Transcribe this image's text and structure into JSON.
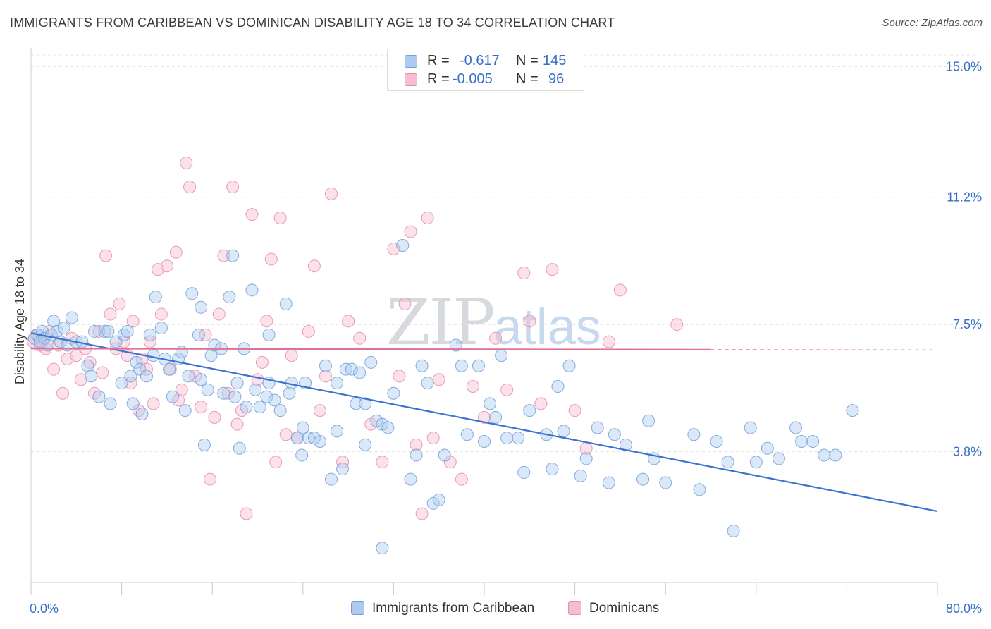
{
  "title": "IMMIGRANTS FROM CARIBBEAN VS DOMINICAN DISABILITY AGE 18 TO 34 CORRELATION CHART",
  "source": "Source: ZipAtlas.com",
  "watermark": {
    "zip": "ZIP",
    "atlas": "atlas"
  },
  "legend_top": [
    {
      "r_label": "R =",
      "r_value": "-0.617",
      "n_label": "N =",
      "n_value": "145"
    },
    {
      "r_label": "R =",
      "r_value": "-0.005",
      "n_label": "N =",
      "n_value": "96"
    }
  ],
  "legend_bottom": [
    {
      "label": "Immigrants from Caribbean"
    },
    {
      "label": "Dominicans"
    }
  ],
  "colors": {
    "blue_fill": "#aecbef",
    "blue_stroke": "#6f9fd8",
    "blue_line": "#3a73d0",
    "pink_fill": "#f7bdd0",
    "pink_stroke": "#e98aab",
    "pink_line": "#e07095",
    "tick_text": "#3a6fc7",
    "grid": "#e2e2e2"
  },
  "chart_data": {
    "type": "scatter",
    "title": "IMMIGRANTS FROM CARIBBEAN VS DOMINICAN DISABILITY AGE 18 TO 34 CORRELATION CHART",
    "xlabel": "",
    "ylabel": "Disability Age 18 to 34",
    "xlim": [
      0,
      80
    ],
    "ylim": [
      0,
      15.5
    ],
    "x_tick_labels": [
      "0.0%",
      "80.0%"
    ],
    "y_ticks": [
      3.8,
      7.5,
      11.2,
      15.0
    ],
    "y_tick_labels": [
      "3.8%",
      "7.5%",
      "11.2%",
      "15.0%"
    ],
    "grid": "horizontal dashed",
    "legend": "top-center",
    "series": [
      {
        "name": "Immigrants from Caribbean",
        "R": -0.617,
        "N": 145,
        "trend": {
          "x": [
            0,
            80
          ],
          "y": [
            7.25,
            2.07
          ]
        },
        "points": [
          [
            0.3,
            7.1
          ],
          [
            0.6,
            7.2
          ],
          [
            0.8,
            7.0
          ],
          [
            1.0,
            7.3
          ],
          [
            1.2,
            7.1
          ],
          [
            1.5,
            6.9
          ],
          [
            1.8,
            7.2
          ],
          [
            2.0,
            7.6
          ],
          [
            2.3,
            7.3
          ],
          [
            2.6,
            7.0
          ],
          [
            2.9,
            7.4
          ],
          [
            3.2,
            6.9
          ],
          [
            3.6,
            7.7
          ],
          [
            4.0,
            7.0
          ],
          [
            4.5,
            7.0
          ],
          [
            5.0,
            6.3
          ],
          [
            5.3,
            6.0
          ],
          [
            5.6,
            7.3
          ],
          [
            6.0,
            5.4
          ],
          [
            6.5,
            7.3
          ],
          [
            6.8,
            7.3
          ],
          [
            7.0,
            5.2
          ],
          [
            7.5,
            7.0
          ],
          [
            8.0,
            5.8
          ],
          [
            8.2,
            7.2
          ],
          [
            8.5,
            7.3
          ],
          [
            8.8,
            6.0
          ],
          [
            9.0,
            5.2
          ],
          [
            9.3,
            6.4
          ],
          [
            9.6,
            6.2
          ],
          [
            9.8,
            4.9
          ],
          [
            10.2,
            6.0
          ],
          [
            10.5,
            7.2
          ],
          [
            10.8,
            6.6
          ],
          [
            11.0,
            8.3
          ],
          [
            11.5,
            7.4
          ],
          [
            11.8,
            6.5
          ],
          [
            12.2,
            6.2
          ],
          [
            12.5,
            5.4
          ],
          [
            13.0,
            6.5
          ],
          [
            13.3,
            6.7
          ],
          [
            13.6,
            5.0
          ],
          [
            13.9,
            6.0
          ],
          [
            14.2,
            8.4
          ],
          [
            14.8,
            7.2
          ],
          [
            15.0,
            8.0
          ],
          [
            15.3,
            4.0
          ],
          [
            15.6,
            5.6
          ],
          [
            15.9,
            6.6
          ],
          [
            16.2,
            6.9
          ],
          [
            16.8,
            6.8
          ],
          [
            17.0,
            5.5
          ],
          [
            17.5,
            8.3
          ],
          [
            17.8,
            9.5
          ],
          [
            18.2,
            5.8
          ],
          [
            18.4,
            3.9
          ],
          [
            18.8,
            6.8
          ],
          [
            19.0,
            5.1
          ],
          [
            19.5,
            8.5
          ],
          [
            19.8,
            5.6
          ],
          [
            20.2,
            5.1
          ],
          [
            20.8,
            5.4
          ],
          [
            21.0,
            7.2
          ],
          [
            21.5,
            5.3
          ],
          [
            22.0,
            5.0
          ],
          [
            22.5,
            8.1
          ],
          [
            22.8,
            5.5
          ],
          [
            23.0,
            5.8
          ],
          [
            23.5,
            4.2
          ],
          [
            23.9,
            3.7
          ],
          [
            24.2,
            5.8
          ],
          [
            24.5,
            4.2
          ],
          [
            25.0,
            4.2
          ],
          [
            25.5,
            4.1
          ],
          [
            26.0,
            6.3
          ],
          [
            26.5,
            3.0
          ],
          [
            27.0,
            4.4
          ],
          [
            27.5,
            3.3
          ],
          [
            27.8,
            6.2
          ],
          [
            28.3,
            6.2
          ],
          [
            28.7,
            5.2
          ],
          [
            29.0,
            6.1
          ],
          [
            29.5,
            4.0
          ],
          [
            30.0,
            6.4
          ],
          [
            30.5,
            4.7
          ],
          [
            31.0,
            4.6
          ],
          [
            31.5,
            4.5
          ],
          [
            32.0,
            5.5
          ],
          [
            32.8,
            9.8
          ],
          [
            33.5,
            3.0
          ],
          [
            34.0,
            3.7
          ],
          [
            34.5,
            6.3
          ],
          [
            35.0,
            5.8
          ],
          [
            35.5,
            2.3
          ],
          [
            36.0,
            2.4
          ],
          [
            36.5,
            3.7
          ],
          [
            37.5,
            6.9
          ],
          [
            38.0,
            6.3
          ],
          [
            38.5,
            4.3
          ],
          [
            39.5,
            6.3
          ],
          [
            40.0,
            4.1
          ],
          [
            40.5,
            5.2
          ],
          [
            41.0,
            4.8
          ],
          [
            41.5,
            6.6
          ],
          [
            42.0,
            4.2
          ],
          [
            43.0,
            4.2
          ],
          [
            43.5,
            3.2
          ],
          [
            44.0,
            5.0
          ],
          [
            45.5,
            4.3
          ],
          [
            46.0,
            3.3
          ],
          [
            46.5,
            5.7
          ],
          [
            47.0,
            4.4
          ],
          [
            47.5,
            6.3
          ],
          [
            48.5,
            3.1
          ],
          [
            49.0,
            3.6
          ],
          [
            50.0,
            4.5
          ],
          [
            51.0,
            2.9
          ],
          [
            51.5,
            4.3
          ],
          [
            52.5,
            4.0
          ],
          [
            54.0,
            3.0
          ],
          [
            54.5,
            4.7
          ],
          [
            55.0,
            3.6
          ],
          [
            56.0,
            2.9
          ],
          [
            58.5,
            4.3
          ],
          [
            59.0,
            2.7
          ],
          [
            60.5,
            4.1
          ],
          [
            61.5,
            3.5
          ],
          [
            62.0,
            1.5
          ],
          [
            63.5,
            4.5
          ],
          [
            64.0,
            3.5
          ],
          [
            65.0,
            3.9
          ],
          [
            66.0,
            3.6
          ],
          [
            67.5,
            4.5
          ],
          [
            68.0,
            4.1
          ],
          [
            69.0,
            4.1
          ],
          [
            70.0,
            3.7
          ],
          [
            71.0,
            3.7
          ],
          [
            72.5,
            5.0
          ],
          [
            31.0,
            1.0
          ],
          [
            29.5,
            5.2
          ],
          [
            27.0,
            5.8
          ],
          [
            24.0,
            4.5
          ],
          [
            21.0,
            5.8
          ],
          [
            18.0,
            5.4
          ],
          [
            15.0,
            5.9
          ]
        ]
      },
      {
        "name": "Dominicans",
        "R": -0.005,
        "N": 96,
        "trend": {
          "x": [
            0,
            60
          ],
          "y": [
            6.8,
            6.77
          ]
        },
        "trend_dashed": {
          "x": [
            60,
            80
          ],
          "y": [
            6.77,
            6.76
          ]
        },
        "points": [
          [
            0.2,
            7.0
          ],
          [
            0.5,
            7.2
          ],
          [
            0.8,
            6.9
          ],
          [
            1.0,
            7.0
          ],
          [
            1.3,
            6.8
          ],
          [
            1.6,
            7.3
          ],
          [
            2.0,
            6.2
          ],
          [
            2.4,
            6.9
          ],
          [
            2.8,
            5.5
          ],
          [
            3.2,
            6.5
          ],
          [
            3.6,
            7.1
          ],
          [
            4.0,
            6.6
          ],
          [
            4.4,
            5.9
          ],
          [
            4.8,
            6.8
          ],
          [
            5.2,
            6.4
          ],
          [
            5.6,
            5.5
          ],
          [
            6.0,
            7.3
          ],
          [
            6.3,
            6.1
          ],
          [
            6.6,
            9.5
          ],
          [
            7.0,
            7.8
          ],
          [
            7.5,
            6.8
          ],
          [
            7.8,
            8.1
          ],
          [
            8.2,
            7.0
          ],
          [
            8.5,
            6.6
          ],
          [
            8.8,
            5.8
          ],
          [
            9.0,
            7.6
          ],
          [
            9.5,
            5.0
          ],
          [
            9.8,
            6.5
          ],
          [
            10.2,
            6.2
          ],
          [
            10.5,
            7.0
          ],
          [
            10.8,
            5.2
          ],
          [
            11.2,
            9.1
          ],
          [
            11.5,
            7.8
          ],
          [
            12.0,
            9.2
          ],
          [
            12.3,
            6.2
          ],
          [
            12.8,
            9.6
          ],
          [
            13.0,
            5.3
          ],
          [
            13.3,
            5.6
          ],
          [
            13.7,
            12.2
          ],
          [
            14.0,
            11.5
          ],
          [
            14.5,
            6.0
          ],
          [
            15.0,
            5.1
          ],
          [
            15.4,
            7.2
          ],
          [
            15.8,
            3.0
          ],
          [
            16.2,
            4.8
          ],
          [
            16.6,
            7.8
          ],
          [
            17.0,
            9.5
          ],
          [
            17.4,
            5.5
          ],
          [
            17.8,
            11.5
          ],
          [
            18.2,
            4.6
          ],
          [
            18.6,
            5.0
          ],
          [
            19.0,
            2.0
          ],
          [
            19.5,
            10.7
          ],
          [
            20.0,
            5.9
          ],
          [
            20.4,
            6.4
          ],
          [
            20.8,
            7.6
          ],
          [
            21.2,
            9.4
          ],
          [
            21.6,
            3.5
          ],
          [
            22.0,
            10.6
          ],
          [
            22.5,
            4.3
          ],
          [
            23.0,
            6.6
          ],
          [
            23.5,
            4.2
          ],
          [
            24.5,
            7.3
          ],
          [
            25.0,
            9.2
          ],
          [
            25.5,
            5.0
          ],
          [
            26.0,
            6.0
          ],
          [
            26.5,
            11.3
          ],
          [
            27.5,
            3.5
          ],
          [
            28.0,
            7.6
          ],
          [
            29.0,
            7.1
          ],
          [
            30.0,
            4.6
          ],
          [
            31.0,
            3.5
          ],
          [
            32.0,
            9.7
          ],
          [
            32.5,
            6.0
          ],
          [
            33.0,
            8.1
          ],
          [
            33.5,
            10.2
          ],
          [
            34.0,
            4.0
          ],
          [
            34.5,
            2.0
          ],
          [
            35.0,
            10.6
          ],
          [
            35.5,
            4.2
          ],
          [
            36.0,
            5.9
          ],
          [
            37.0,
            3.5
          ],
          [
            38.0,
            3.0
          ],
          [
            39.0,
            5.7
          ],
          [
            40.0,
            4.8
          ],
          [
            41.0,
            7.1
          ],
          [
            42.0,
            5.6
          ],
          [
            43.5,
            9.0
          ],
          [
            44.0,
            7.6
          ],
          [
            45.0,
            5.2
          ],
          [
            46.0,
            9.1
          ],
          [
            48.0,
            5.0
          ],
          [
            49.0,
            3.9
          ],
          [
            51.0,
            7.0
          ],
          [
            52.0,
            8.5
          ],
          [
            57.0,
            7.5
          ]
        ]
      }
    ]
  }
}
